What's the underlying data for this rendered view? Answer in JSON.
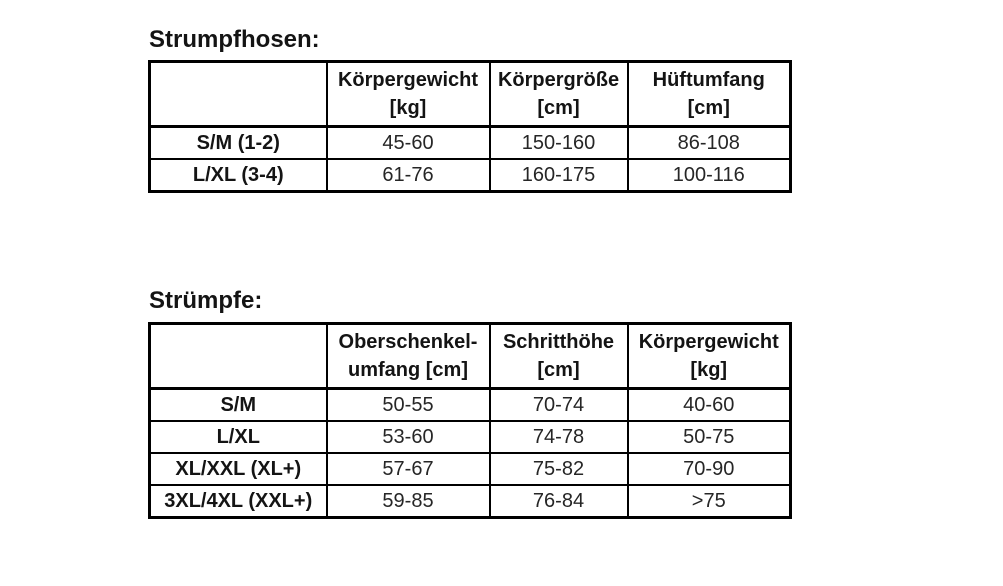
{
  "page": {
    "background": "#ffffff",
    "text_color": "#1f1f1f",
    "border_color": "#000000"
  },
  "sections": [
    {
      "title": "Strumpfhosen:",
      "columns": [
        {
          "line1": "Körpergewicht",
          "line2": "[kg]"
        },
        {
          "line1": "Körpergröße",
          "line2": "[cm]"
        },
        {
          "line1": "Hüftumfang",
          "line2": "[cm]"
        }
      ],
      "rows": [
        {
          "label": "S/M (1-2)",
          "values": [
            "45-60",
            "150-160",
            "86-108"
          ]
        },
        {
          "label": "L/XL (3-4)",
          "values": [
            "61-76",
            "160-175",
            "100-116"
          ]
        }
      ]
    },
    {
      "title": "Strümpfe:",
      "columns": [
        {
          "line1": "Oberschenkel-",
          "line2": "umfang [cm]"
        },
        {
          "line1": "Schritthöhe",
          "line2": "[cm]"
        },
        {
          "line1": "Körpergewicht",
          "line2": "[kg]"
        }
      ],
      "rows": [
        {
          "label": "S/M",
          "values": [
            "50-55",
            "70-74",
            "40-60"
          ]
        },
        {
          "label": "L/XL",
          "values": [
            "53-60",
            "74-78",
            "50-75"
          ]
        },
        {
          "label": "XL/XXL (XL+)",
          "values": [
            "57-67",
            "75-82",
            "70-90"
          ]
        },
        {
          "label": "3XL/4XL (XXL+)",
          "values": [
            "59-85",
            "76-84",
            ">75"
          ]
        }
      ]
    }
  ]
}
